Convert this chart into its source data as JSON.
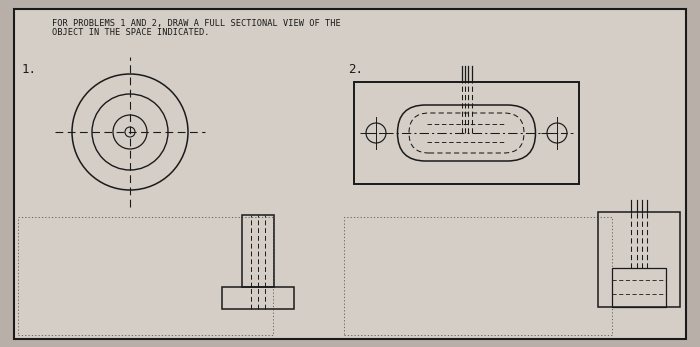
{
  "title_line1": "FOR PROBLEMS 1 AND 2, DRAW A FULL SECTIONAL VIEW OF THE",
  "title_line2": "OBJECT IN THE SPACE INDICATED.",
  "bg_color": "#b8b0a8",
  "paper_color": "#d4cec6",
  "line_color": "#1a1a1a",
  "label1": "1.",
  "label2": "2.",
  "title_fontsize": 6.2,
  "label_fontsize": 9
}
